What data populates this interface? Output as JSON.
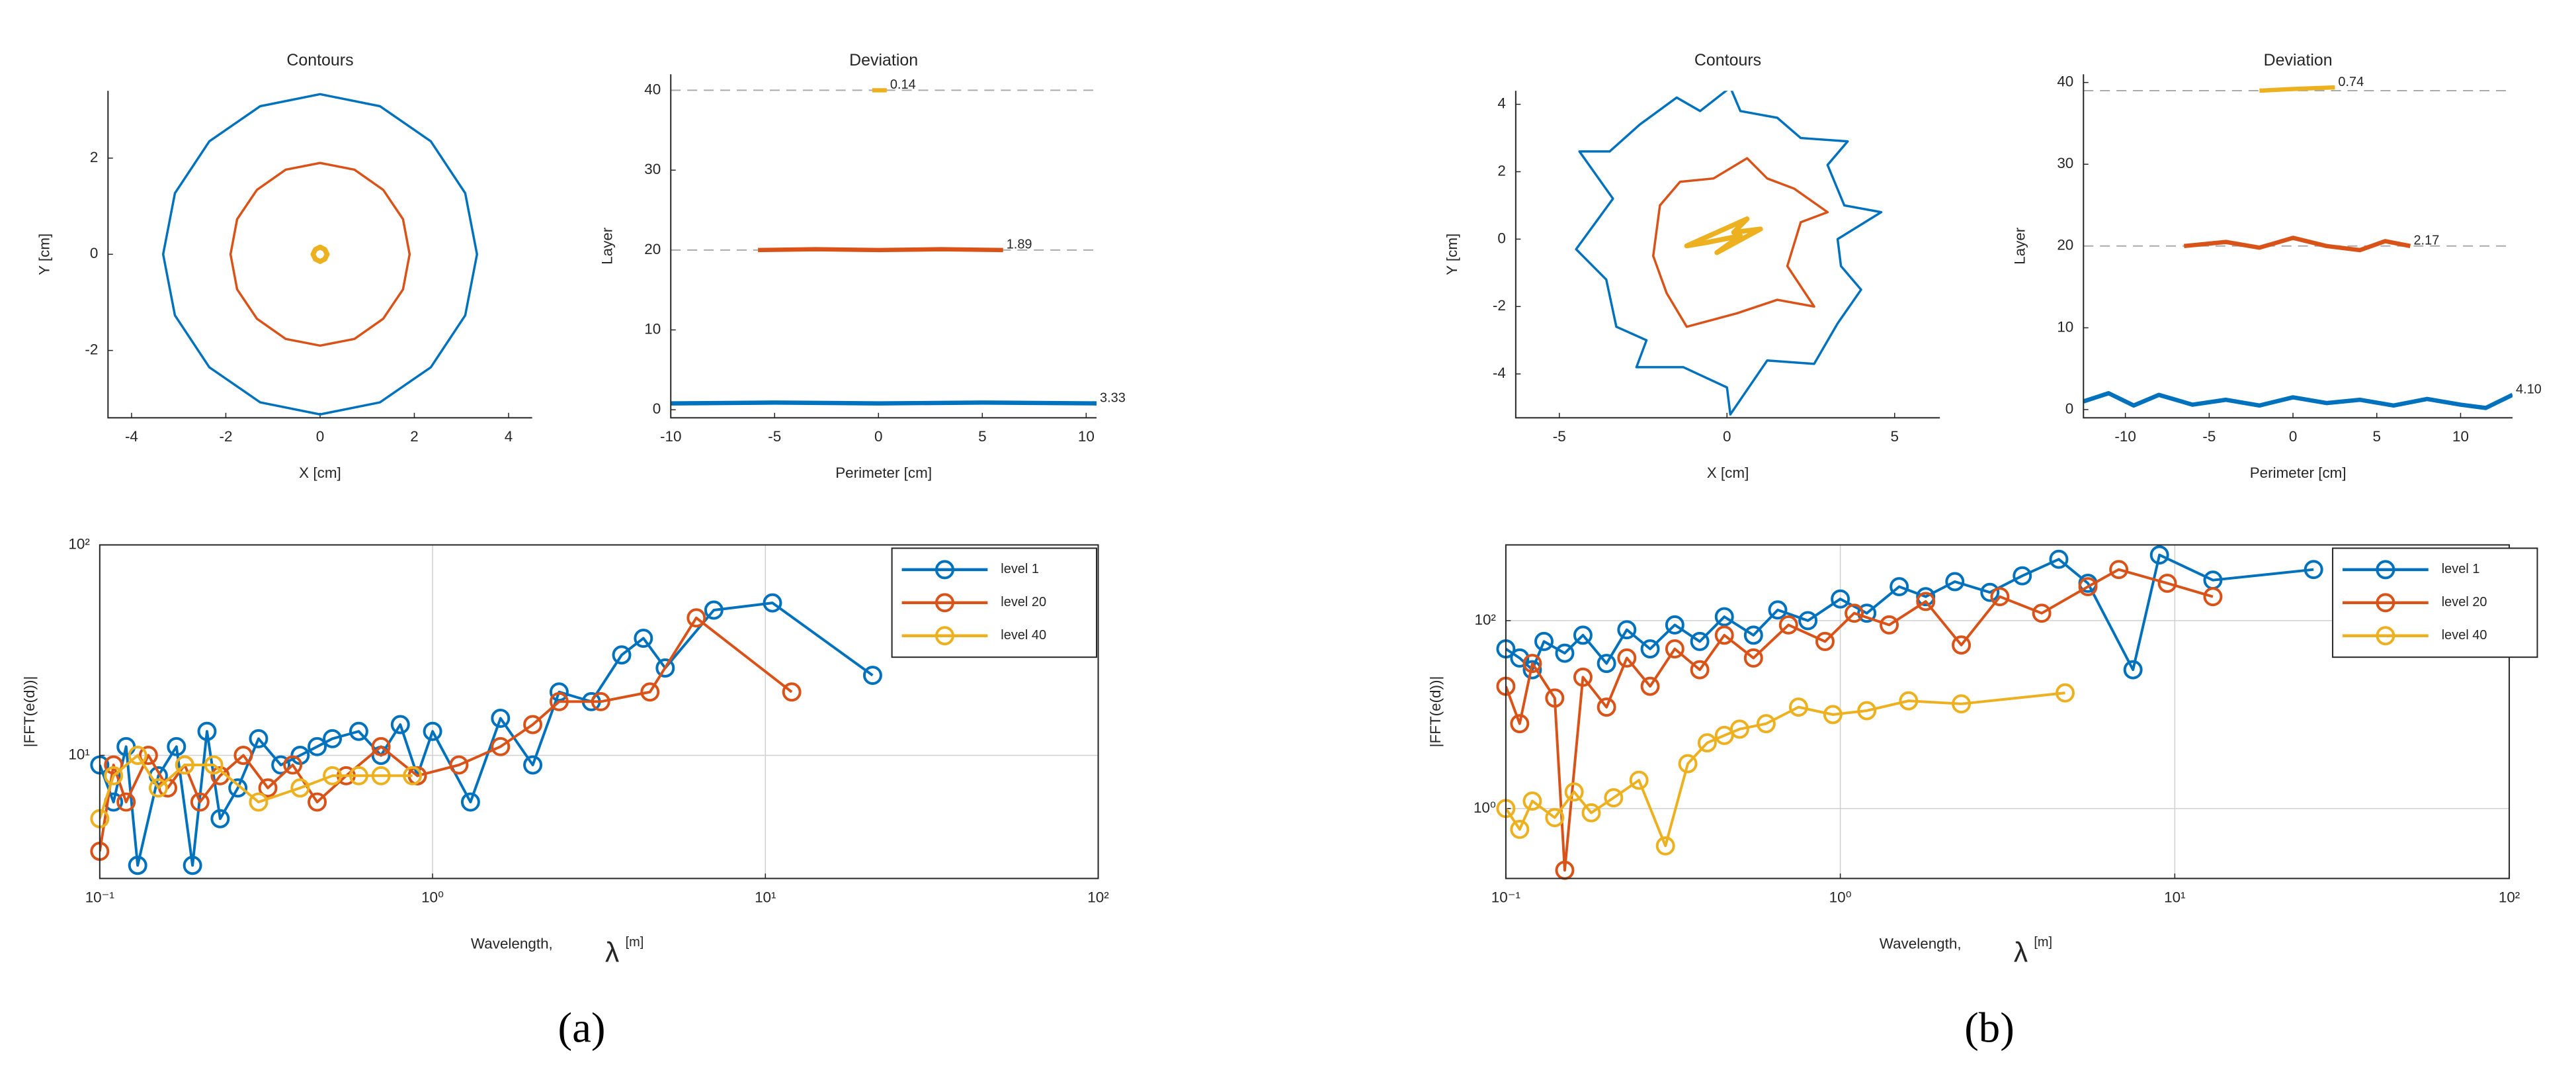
{
  "captions": [
    "(a)",
    "(b)"
  ],
  "chart_data": [
    {
      "type": "contour",
      "title": "Contours",
      "xlabel": "X [cm]",
      "ylabel": "Y [cm]",
      "xlim": [
        -4.5,
        4.5
      ],
      "ylim": [
        -3.4,
        3.4
      ],
      "xticks": [
        -4,
        -2,
        0,
        2,
        4
      ],
      "yticks": [
        -2,
        0,
        2
      ],
      "series": [
        {
          "color": "#0072bd",
          "x": [
            3.33,
            3.08,
            2.35,
            1.27,
            0,
            -1.27,
            -2.35,
            -3.08,
            -3.33,
            -3.08,
            -2.35,
            -1.27,
            0,
            1.27,
            2.35,
            3.08
          ],
          "values": [
            0,
            1.27,
            2.35,
            3.08,
            3.33,
            3.08,
            2.35,
            1.27,
            0,
            -1.27,
            -2.35,
            -3.08,
            -3.33,
            -3.08,
            -2.35,
            -1.27
          ]
        },
        {
          "color": "#d95319",
          "x": [
            1.9,
            1.76,
            1.34,
            0.73,
            0,
            -0.73,
            -1.34,
            -1.76,
            -1.9,
            -1.76,
            -1.34,
            -0.73,
            0,
            0.73,
            1.34,
            1.76
          ],
          "values": [
            0,
            0.73,
            1.34,
            1.76,
            1.9,
            1.76,
            1.34,
            0.73,
            0,
            -0.73,
            -1.34,
            -1.76,
            -1.9,
            -1.76,
            -1.34,
            -0.73
          ]
        },
        {
          "color": "#edb120",
          "x": [
            0.15,
            0.1,
            0,
            -0.1,
            -0.15,
            -0.1,
            0,
            0.1
          ],
          "values": [
            0,
            0.1,
            0.15,
            0.1,
            0,
            -0.1,
            -0.15,
            -0.1
          ]
        }
      ]
    },
    {
      "type": "line",
      "title": "Deviation",
      "xlabel": "Perimeter [cm]",
      "ylabel": "Layer",
      "xlim": [
        -10,
        10.5
      ],
      "ylim": [
        -1,
        42
      ],
      "xticks": [
        -10,
        -5,
        0,
        5,
        10
      ],
      "yticks": [
        0,
        10,
        20,
        30,
        40
      ],
      "hlines": [
        40,
        20
      ],
      "series": [
        {
          "color": "#0072bd",
          "x": [
            -10,
            -5,
            0,
            5,
            10.5
          ],
          "values": [
            0.8,
            0.9,
            0.8,
            0.9,
            0.8
          ],
          "end_label": "3.33"
        },
        {
          "color": "#d95319",
          "x": [
            -5.8,
            -3,
            0,
            3,
            6
          ],
          "values": [
            20,
            20.1,
            20,
            20.1,
            20
          ],
          "end_label": "1.89"
        },
        {
          "color": "#edb120",
          "x": [
            -0.3,
            0.4
          ],
          "values": [
            40,
            40
          ],
          "end_label": "0.14"
        }
      ]
    },
    {
      "type": "line",
      "xscale": "log",
      "yscale": "log",
      "grid": true,
      "markers": "o",
      "legend": "northeast",
      "xlabel": "Wavelength,",
      "xlabel_symbol": "λ",
      "xlabel_unit": "[m]",
      "ylabel": "|FFT(e(d))|",
      "xlim": [
        0.1,
        100
      ],
      "ylim": [
        2.6,
        100
      ],
      "xticks": [
        {
          "value": 0.1,
          "label": "10⁻¹"
        },
        {
          "value": 1,
          "label": "10⁰"
        },
        {
          "value": 10,
          "label": "10¹"
        },
        {
          "value": 100,
          "label": "10²"
        }
      ],
      "yticks": [
        {
          "value": 10,
          "label": "10¹"
        },
        {
          "value": 100,
          "label": "10²"
        }
      ],
      "series": [
        {
          "name": "level 1",
          "color": "#0072bd",
          "x": [
            0.1,
            0.11,
            0.12,
            0.13,
            0.15,
            0.17,
            0.19,
            0.21,
            0.23,
            0.26,
            0.3,
            0.35,
            0.4,
            0.45,
            0.5,
            0.6,
            0.7,
            0.8,
            0.9,
            1.0,
            1.3,
            1.6,
            2.0,
            2.4,
            3.0,
            3.7,
            4.3,
            5.0,
            7.0,
            10.5,
            21
          ],
          "values": [
            9,
            6,
            11,
            3,
            8,
            11,
            3,
            13,
            5,
            7,
            12,
            9,
            10,
            11,
            12,
            13,
            10,
            14,
            8,
            13,
            6,
            15,
            9,
            20,
            18,
            30,
            36,
            26,
            49,
            53,
            24
          ]
        },
        {
          "name": "level 20",
          "color": "#d95319",
          "x": [
            0.1,
            0.11,
            0.12,
            0.14,
            0.16,
            0.18,
            0.2,
            0.23,
            0.27,
            0.32,
            0.38,
            0.45,
            0.55,
            0.7,
            0.9,
            1.2,
            1.6,
            2.0,
            2.4,
            3.2,
            4.5,
            6.2,
            12
          ],
          "values": [
            3.5,
            9,
            6,
            10,
            7,
            9,
            6,
            8,
            10,
            7,
            9,
            6,
            8,
            11,
            8,
            9,
            11,
            14,
            18,
            18,
            20,
            45,
            20
          ]
        },
        {
          "name": "level 40",
          "color": "#edb120",
          "x": [
            0.1,
            0.11,
            0.13,
            0.15,
            0.18,
            0.22,
            0.3,
            0.4,
            0.5,
            0.6,
            0.7,
            0.87
          ],
          "values": [
            5,
            8,
            10,
            7,
            9,
            9,
            6,
            7,
            8,
            8,
            8,
            8
          ]
        }
      ]
    },
    {
      "type": "contour",
      "title": "Contours",
      "xlabel": "X [cm]",
      "ylabel": "Y [cm]",
      "xlim": [
        -6.3,
        6.35
      ],
      "ylim": [
        -5.3,
        4.4
      ],
      "xticks": [
        -5,
        0,
        5
      ],
      "yticks": [
        -4,
        -2,
        0,
        2,
        4
      ],
      "series": [
        {
          "color": "#0072bd",
          "x": [
            3.3,
            4.6,
            3.5,
            3.0,
            3.6,
            2.2,
            1.5,
            0.4,
            0.1,
            -0.8,
            -1.5,
            -2.6,
            -3.5,
            -4.4,
            -3.4,
            -4.5,
            -3.6,
            -3.3,
            -2.4,
            -2.7,
            -1.3,
            0,
            0.1,
            1.2,
            2.6,
            3.3,
            4.0,
            3.4
          ],
          "values": [
            0,
            0.8,
            1.0,
            2.2,
            2.9,
            3.0,
            3.6,
            3.8,
            4.5,
            3.8,
            4.2,
            3.4,
            2.6,
            2.6,
            1.2,
            -0.3,
            -1.2,
            -2.6,
            -3.0,
            -3.8,
            -3.8,
            -4.4,
            -5.2,
            -3.6,
            -3.7,
            -2.5,
            -1.5,
            -0.8
          ]
        },
        {
          "color": "#d95319",
          "x": [
            2.2,
            3.0,
            2.0,
            1.2,
            0.6,
            -0.4,
            -1.4,
            -2.0,
            -2.2,
            -1.8,
            -1.2,
            0.3,
            1.5,
            2.6,
            1.8
          ],
          "values": [
            0.5,
            0.8,
            1.5,
            1.8,
            2.4,
            1.8,
            1.7,
            1.0,
            -0.5,
            -1.6,
            -2.6,
            -2.2,
            -1.8,
            -2.0,
            -0.8
          ]
        },
        {
          "color": "#edb120",
          "x": [
            -1.2,
            0.6,
            0.2,
            1.0,
            -0.3,
            0.4,
            -0.6
          ],
          "values": [
            -0.2,
            0.6,
            0.2,
            0.3,
            -0.4,
            0.1,
            -0.1
          ]
        }
      ]
    },
    {
      "type": "line",
      "title": "Deviation",
      "xlabel": "Perimeter [cm]",
      "ylabel": "Layer",
      "xlim": [
        -12.5,
        13.1
      ],
      "ylim": [
        -1,
        41
      ],
      "xticks": [
        -10,
        -5,
        0,
        5,
        10
      ],
      "yticks": [
        0,
        10,
        20,
        30,
        40
      ],
      "hlines": [
        39,
        20
      ],
      "series": [
        {
          "color": "#0072bd",
          "x": [
            -12.5,
            -11,
            -9.5,
            -8,
            -6,
            -4,
            -2,
            0,
            2,
            4,
            6,
            8,
            10,
            11.5,
            13.1
          ],
          "values": [
            1,
            2,
            0.5,
            1.8,
            0.6,
            1.2,
            0.5,
            1.5,
            0.8,
            1.2,
            0.5,
            1.3,
            0.6,
            0.2,
            1.8
          ],
          "end_label": "4.10"
        },
        {
          "color": "#d95319",
          "x": [
            -6.5,
            -4,
            -2,
            0,
            2,
            4,
            5.5,
            7
          ],
          "values": [
            20,
            20.5,
            19.8,
            21,
            20,
            19.5,
            20.6,
            20
          ],
          "end_label": "2.17"
        },
        {
          "color": "#edb120",
          "x": [
            -2,
            0,
            2.5
          ],
          "values": [
            39,
            39.2,
            39.4
          ],
          "end_label": "0.74"
        }
      ]
    },
    {
      "type": "line",
      "xscale": "log",
      "yscale": "log",
      "grid": true,
      "markers": "o",
      "legend": "northeast",
      "xlabel": "Wavelength,",
      "xlabel_symbol": "λ",
      "xlabel_unit": "[m]",
      "ylabel": "|FFT(e(d))|",
      "xlim": [
        0.1,
        100
      ],
      "ylim": [
        0.18,
        640
      ],
      "xticks": [
        {
          "value": 0.1,
          "label": "10⁻¹"
        },
        {
          "value": 1,
          "label": "10⁰"
        },
        {
          "value": 10,
          "label": "10¹"
        },
        {
          "value": 100,
          "label": "10²"
        }
      ],
      "yticks": [
        {
          "value": 1,
          "label": "10⁰"
        },
        {
          "value": 100,
          "label": "10²"
        }
      ],
      "series": [
        {
          "name": "level 1",
          "color": "#0072bd",
          "x": [
            0.1,
            0.11,
            0.12,
            0.13,
            0.15,
            0.17,
            0.2,
            0.23,
            0.27,
            0.32,
            0.38,
            0.45,
            0.55,
            0.65,
            0.8,
            1.0,
            1.2,
            1.5,
            1.8,
            2.2,
            2.8,
            3.5,
            4.5,
            5.5,
            7.5,
            9,
            13,
            26
          ],
          "values": [
            50,
            40,
            30,
            60,
            45,
            70,
            35,
            80,
            50,
            90,
            60,
            110,
            70,
            130,
            100,
            170,
            120,
            230,
            180,
            260,
            200,
            300,
            450,
            250,
            30,
            500,
            270,
            350
          ]
        },
        {
          "name": "level 20",
          "color": "#d95319",
          "x": [
            0.1,
            0.11,
            0.12,
            0.14,
            0.15,
            0.17,
            0.2,
            0.23,
            0.27,
            0.32,
            0.38,
            0.45,
            0.55,
            0.7,
            0.9,
            1.1,
            1.4,
            1.8,
            2.3,
            3.0,
            4.0,
            5.5,
            6.8,
            9.5,
            13
          ],
          "values": [
            20,
            8,
            35,
            15,
            0.22,
            25,
            12,
            40,
            20,
            50,
            30,
            70,
            40,
            90,
            60,
            120,
            90,
            160,
            55,
            180,
            120,
            230,
            350,
            250,
            180
          ]
        },
        {
          "name": "level 40",
          "color": "#edb120",
          "x": [
            0.1,
            0.11,
            0.12,
            0.14,
            0.16,
            0.18,
            0.21,
            0.25,
            0.3,
            0.35,
            0.4,
            0.45,
            0.5,
            0.6,
            0.75,
            0.95,
            1.2,
            1.6,
            2.3,
            4.7
          ],
          "values": [
            1,
            0.6,
            1.2,
            0.8,
            1.5,
            0.9,
            1.3,
            2,
            0.4,
            3,
            5,
            6,
            7,
            8,
            12,
            10,
            11,
            14,
            13,
            17
          ]
        }
      ]
    }
  ]
}
